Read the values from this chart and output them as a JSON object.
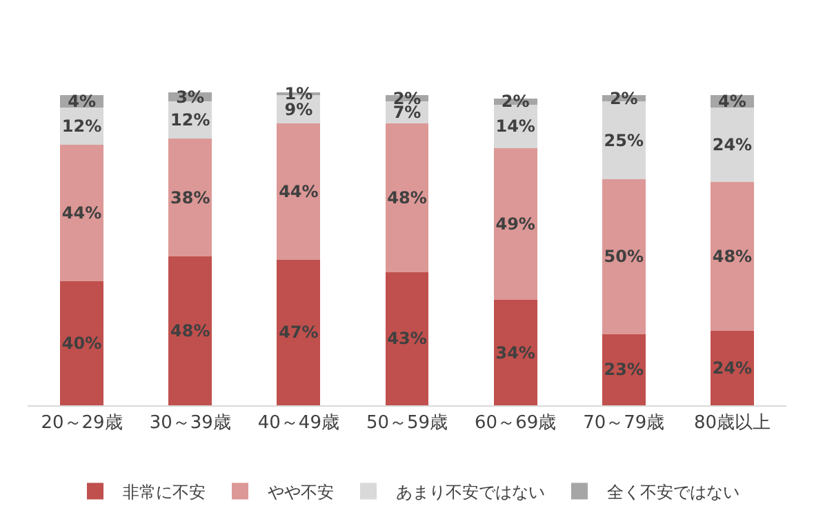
{
  "chart_data": {
    "type": "bar",
    "stacked": true,
    "categories": [
      "20～29歳",
      "30～39歳",
      "40～49歳",
      "50～59歳",
      "60～69歳",
      "70～79歳",
      "80歳以上"
    ],
    "series": [
      {
        "name": "非常に不安",
        "color": "#c0504d",
        "values": [
          40,
          48,
          47,
          43,
          34,
          23,
          24
        ],
        "value_labels": [
          "40%",
          "48%",
          "47%",
          "43%",
          "34%",
          "23%",
          "24%"
        ]
      },
      {
        "name": "やや不安",
        "color": "#dc9896",
        "values": [
          44,
          38,
          44,
          48,
          49,
          50,
          48
        ],
        "value_labels": [
          "44%",
          "38%",
          "44%",
          "48%",
          "49%",
          "50%",
          "48%"
        ]
      },
      {
        "name": "あまり不安ではない",
        "color": "#d9d9d9",
        "values": [
          12,
          12,
          9,
          7,
          14,
          25,
          24
        ],
        "value_labels": [
          "12%",
          "12%",
          "9%",
          "7%",
          "14%",
          "25%",
          "24%"
        ]
      },
      {
        "name": "全く不安ではない",
        "color": "#a6a6a6",
        "values": [
          4,
          3,
          1,
          2,
          2,
          2,
          4
        ],
        "value_labels": [
          "4%",
          "3%",
          "1%",
          "2%",
          "2%",
          "2%",
          "4%"
        ]
      }
    ],
    "tick_labels": "x",
    "grid": false,
    "legend": "bottom"
  }
}
